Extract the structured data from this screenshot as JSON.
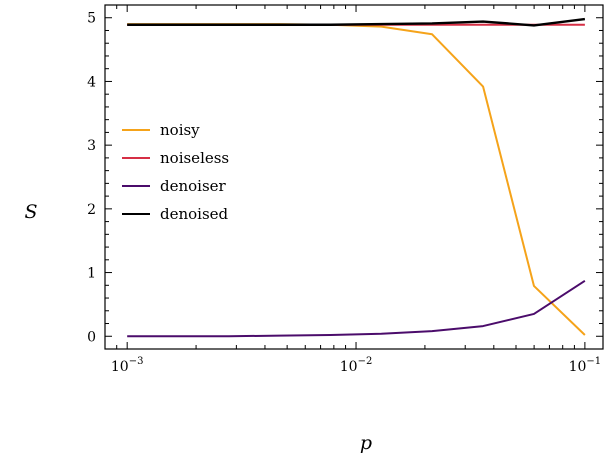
{
  "chart_data": {
    "type": "line",
    "title": "",
    "xlabel": "p",
    "ylabel": "S",
    "xscale": "log",
    "xlim": [
      0.0008,
      0.12
    ],
    "ylim": [
      -0.2,
      5.2
    ],
    "grid": false,
    "legend_position": "center-left",
    "x_ticks": [
      {
        "value": 0.001,
        "base": "10",
        "exp": "−3"
      },
      {
        "value": 0.01,
        "base": "10",
        "exp": "−2"
      },
      {
        "value": 0.1,
        "base": "10",
        "exp": "−1"
      }
    ],
    "y_ticks": [
      {
        "value": 0,
        "label": "0"
      },
      {
        "value": 1,
        "label": "1"
      },
      {
        "value": 2,
        "label": "2"
      },
      {
        "value": 3,
        "label": "3"
      },
      {
        "value": 4,
        "label": "4"
      },
      {
        "value": 5,
        "label": "5"
      }
    ],
    "x": [
      0.001,
      0.00167,
      0.00278,
      0.00464,
      0.00774,
      0.0129,
      0.0215,
      0.0359,
      0.0599,
      0.1
    ],
    "series": [
      {
        "name": "noisy",
        "color": "#f5a31a",
        "values": [
          4.9,
          4.9,
          4.9,
          4.9,
          4.89,
          4.86,
          4.74,
          3.92,
          0.79,
          0.02
        ]
      },
      {
        "name": "noiseless",
        "color": "#d62f45",
        "values": [
          4.89,
          4.89,
          4.89,
          4.89,
          4.89,
          4.89,
          4.89,
          4.89,
          4.89,
          4.89
        ]
      },
      {
        "name": "denoiser",
        "color": "#4b0c6b",
        "values": [
          0.0,
          0.0,
          0.0,
          0.01,
          0.02,
          0.04,
          0.08,
          0.16,
          0.35,
          0.87
        ]
      },
      {
        "name": "denoised",
        "color": "#000000",
        "values": [
          4.89,
          4.89,
          4.89,
          4.89,
          4.89,
          4.9,
          4.91,
          4.94,
          4.88,
          4.98
        ]
      }
    ]
  }
}
